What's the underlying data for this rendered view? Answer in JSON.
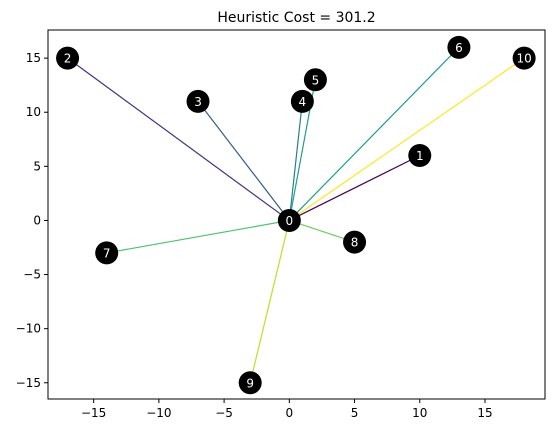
{
  "chart_data": {
    "type": "network",
    "title": "Heuristic Cost = 301.2",
    "xlabel": "",
    "ylabel": "",
    "xlim": [
      -18.5,
      19.6
    ],
    "ylim": [
      -16.5,
      17.6
    ],
    "xticks": [
      -15,
      -10,
      -5,
      0,
      5,
      10,
      15
    ],
    "yticks": [
      -15,
      -10,
      -5,
      0,
      5,
      10,
      15
    ],
    "grid": false,
    "nodes": [
      {
        "id": "0",
        "x": 0,
        "y": 0
      },
      {
        "id": "1",
        "x": 10,
        "y": 6
      },
      {
        "id": "2",
        "x": -17,
        "y": 15
      },
      {
        "id": "3",
        "x": -7,
        "y": 11
      },
      {
        "id": "4",
        "x": 1,
        "y": 11
      },
      {
        "id": "5",
        "x": 2,
        "y": 13
      },
      {
        "id": "6",
        "x": 13,
        "y": 16
      },
      {
        "id": "7",
        "x": -14,
        "y": -3
      },
      {
        "id": "8",
        "x": 5,
        "y": -2
      },
      {
        "id": "9",
        "x": -3,
        "y": -15
      },
      {
        "id": "10",
        "x": 18,
        "y": 15
      }
    ],
    "edges": [
      {
        "from": "0",
        "to": "1",
        "color": "#440154"
      },
      {
        "from": "0",
        "to": "2",
        "color": "#46327e"
      },
      {
        "from": "0",
        "to": "3",
        "color": "#365c8d"
      },
      {
        "from": "0",
        "to": "4",
        "color": "#277f8e"
      },
      {
        "from": "0",
        "to": "5",
        "color": "#1f9e89"
      },
      {
        "from": "0",
        "to": "6",
        "color": "#1fa187"
      },
      {
        "from": "0",
        "to": "7",
        "color": "#4ac16d"
      },
      {
        "from": "0",
        "to": "8",
        "color": "#6ece58"
      },
      {
        "from": "0",
        "to": "9",
        "color": "#bddf26"
      },
      {
        "from": "0",
        "to": "10",
        "color": "#fde725"
      }
    ]
  }
}
